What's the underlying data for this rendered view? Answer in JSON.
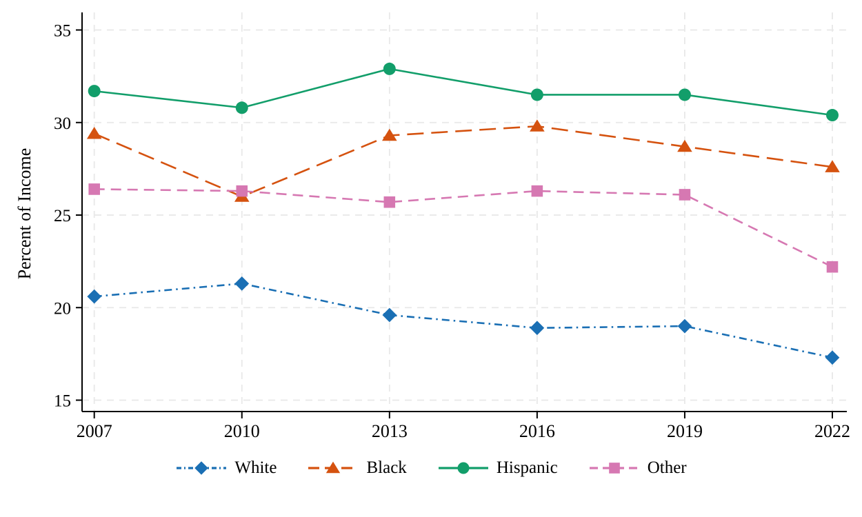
{
  "chart_data": {
    "type": "line",
    "title": "",
    "xlabel": "",
    "ylabel": "Percent of Income",
    "categories": [
      "2007",
      "2010",
      "2013",
      "2016",
      "2019",
      "2022"
    ],
    "y_ticks": [
      15,
      20,
      25,
      30,
      35
    ],
    "ylim": [
      14.3,
      36.0
    ],
    "grid": true,
    "legend_position": "bottom",
    "series": [
      {
        "name": "White",
        "color": "#1a6fb4",
        "marker": "diamond",
        "line_style": "dash-dot",
        "values": [
          20.6,
          21.3,
          19.6,
          18.9,
          19.0,
          17.3
        ]
      },
      {
        "name": "Black",
        "color": "#d5520f",
        "marker": "triangle",
        "line_style": "long-dash",
        "values": [
          29.4,
          26.0,
          29.3,
          29.8,
          28.7,
          27.6
        ]
      },
      {
        "name": "Hispanic",
        "color": "#129e6a",
        "marker": "circle",
        "line_style": "solid",
        "values": [
          31.7,
          30.8,
          32.9,
          31.5,
          31.5,
          30.4
        ]
      },
      {
        "name": "Other",
        "color": "#d678b2",
        "marker": "square",
        "line_style": "dash",
        "values": [
          26.4,
          26.3,
          25.7,
          26.3,
          26.1,
          22.2
        ]
      }
    ],
    "colors": {
      "grid": "#e8e8e8",
      "axis": "#000000",
      "text": "#000000",
      "background": "#ffffff"
    }
  }
}
